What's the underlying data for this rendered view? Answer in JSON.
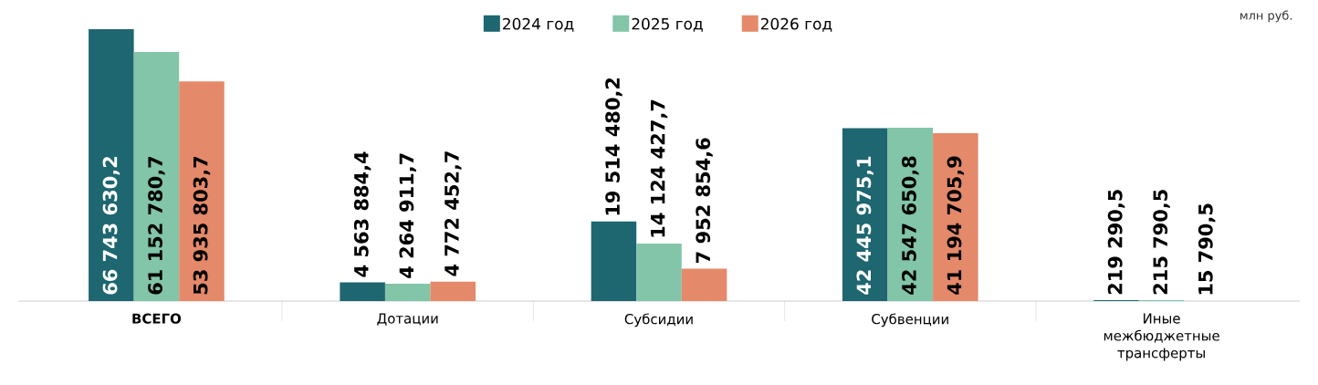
{
  "chart_data": {
    "type": "bar",
    "categories": [
      "ВСЕГО",
      "Дотации",
      "Субсидии",
      "Субвенции",
      "Иные межбюджетные трансферты"
    ],
    "series": [
      {
        "name": "2024 год",
        "color": "#1e6670",
        "values": [
          66743630.2,
          4563884.4,
          19514480.2,
          42445975.1,
          219290.5
        ],
        "value_labels": [
          "66 743 630,2",
          "4 563 884,4",
          "19 514 480,2",
          "42 445 975,1",
          "219 290,5"
        ]
      },
      {
        "name": "2025 год",
        "color": "#82c5a8",
        "values": [
          61152780.7,
          4264911.7,
          14124427.7,
          42547650.8,
          215790.5
        ],
        "value_labels": [
          "61 152 780,7",
          "4 264 911,7",
          "14 124 427,7",
          "42 547 650,8",
          "215 790,5"
        ]
      },
      {
        "name": "2026 год",
        "color": "#e4896a",
        "values": [
          53935803.7,
          4772452.7,
          7952854.6,
          41194705.9,
          15790.5
        ],
        "value_labels": [
          "53 935 803,7",
          "4 772 452,7",
          "7 952 854,6",
          "41 194 705,9",
          "15 790,5"
        ]
      }
    ],
    "legend": "top",
    "annotations": [
      "млн руб."
    ]
  }
}
